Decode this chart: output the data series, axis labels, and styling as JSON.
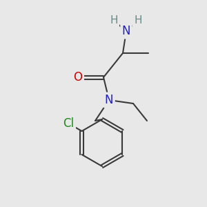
{
  "background_color": "#e8e8e8",
  "bond_color": "#3a3a3a",
  "bond_width": 1.5,
  "atom_colors": {
    "N": "#2222bb",
    "O": "#cc0000",
    "Cl": "#228822",
    "C": "#3a3a3a",
    "H": "#6a8a8a"
  },
  "font_sizes": {
    "large": 12,
    "medium": 11
  }
}
